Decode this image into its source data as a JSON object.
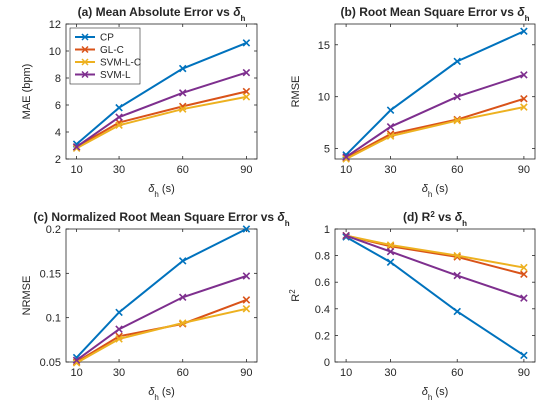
{
  "chart_data": [
    {
      "type": "line",
      "title": "(a) Mean Absolute Error vs ",
      "title_symbol": "δ",
      "title_sub": "h",
      "xlabel_symbol": "δ",
      "xlabel_sub": "h",
      "xlabel_unit": " (s)",
      "ylabel": "MAE (bpm)",
      "x": [
        10,
        30,
        60,
        90
      ],
      "xlim": [
        5,
        95
      ],
      "ylim": [
        2,
        12
      ],
      "yticks": [
        2,
        4,
        6,
        8,
        10,
        12
      ],
      "grid": false,
      "legend": "top-left",
      "series": [
        {
          "name": "CP",
          "color": "#0072BD",
          "values": [
            3.1,
            5.8,
            8.7,
            10.6
          ]
        },
        {
          "name": "GL-C",
          "color": "#D95319",
          "values": [
            2.9,
            4.7,
            5.9,
            7.0
          ]
        },
        {
          "name": "SVM-L-C",
          "color": "#EDB120",
          "values": [
            2.8,
            4.5,
            5.7,
            6.6
          ]
        },
        {
          "name": "SVM-L",
          "color": "#7E2F8E",
          "values": [
            2.9,
            5.1,
            6.9,
            8.4
          ]
        }
      ]
    },
    {
      "type": "line",
      "title": "(b) Root Mean Square Error vs ",
      "title_symbol": "δ",
      "title_sub": "h",
      "xlabel_symbol": "δ",
      "xlabel_sub": "h",
      "xlabel_unit": " (s)",
      "ylabel": "RMSE",
      "x": [
        10,
        30,
        60,
        90
      ],
      "xlim": [
        5,
        95
      ],
      "ylim": [
        4,
        17
      ],
      "yticks": [
        5,
        10,
        15
      ],
      "grid": false,
      "series": [
        {
          "name": "CP",
          "color": "#0072BD",
          "values": [
            4.4,
            8.7,
            13.4,
            16.3
          ]
        },
        {
          "name": "GL-C",
          "color": "#D95319",
          "values": [
            4.1,
            6.4,
            7.8,
            9.8
          ]
        },
        {
          "name": "SVM-L-C",
          "color": "#EDB120",
          "values": [
            4.0,
            6.2,
            7.7,
            9.0
          ]
        },
        {
          "name": "SVM-L",
          "color": "#7E2F8E",
          "values": [
            4.2,
            7.1,
            10.0,
            12.1
          ]
        }
      ]
    },
    {
      "type": "line",
      "title": "(c) Normalized Root Mean Square Error vs ",
      "title_symbol": "δ",
      "title_sub": "h",
      "xlabel_symbol": "δ",
      "xlabel_sub": "h",
      "xlabel_unit": " (s)",
      "ylabel": "NRMSE",
      "x": [
        10,
        30,
        60,
        90
      ],
      "xlim": [
        5,
        95
      ],
      "ylim": [
        0.05,
        0.2
      ],
      "yticks": [
        0.05,
        0.1,
        0.15,
        0.2
      ],
      "ytick_labels": [
        "0.05",
        "0.1",
        "0.15",
        "0.2"
      ],
      "grid": false,
      "series": [
        {
          "name": "CP",
          "color": "#0072BD",
          "values": [
            0.055,
            0.106,
            0.164,
            0.2
          ]
        },
        {
          "name": "GL-C",
          "color": "#D95319",
          "values": [
            0.05,
            0.079,
            0.093,
            0.12
          ]
        },
        {
          "name": "SVM-L-C",
          "color": "#EDB120",
          "values": [
            0.049,
            0.076,
            0.094,
            0.11
          ]
        },
        {
          "name": "SVM-L",
          "color": "#7E2F8E",
          "values": [
            0.052,
            0.087,
            0.123,
            0.147
          ]
        }
      ]
    },
    {
      "type": "line",
      "title": "(d) R",
      "title_sup": "2",
      "title_rest": " vs ",
      "title_symbol": "δ",
      "title_sub": "h",
      "xlabel_symbol": "δ",
      "xlabel_sub": "h",
      "xlabel_unit": " (s)",
      "ylabel": "R",
      "ylabel_sup": "2",
      "x": [
        10,
        30,
        60,
        90
      ],
      "xlim": [
        5,
        95
      ],
      "ylim": [
        0,
        1
      ],
      "yticks": [
        0,
        0.2,
        0.4,
        0.6,
        0.8,
        1
      ],
      "ytick_labels": [
        "0",
        "0.2",
        "0.4",
        "0.6",
        "0.8",
        "1"
      ],
      "grid": false,
      "series": [
        {
          "name": "CP",
          "color": "#0072BD",
          "values": [
            0.94,
            0.75,
            0.38,
            0.05
          ]
        },
        {
          "name": "GL-C",
          "color": "#D95319",
          "values": [
            0.95,
            0.87,
            0.79,
            0.66
          ]
        },
        {
          "name": "SVM-L-C",
          "color": "#EDB120",
          "values": [
            0.95,
            0.88,
            0.8,
            0.71
          ]
        },
        {
          "name": "SVM-L",
          "color": "#7E2F8E",
          "values": [
            0.95,
            0.83,
            0.65,
            0.48
          ]
        }
      ]
    }
  ]
}
